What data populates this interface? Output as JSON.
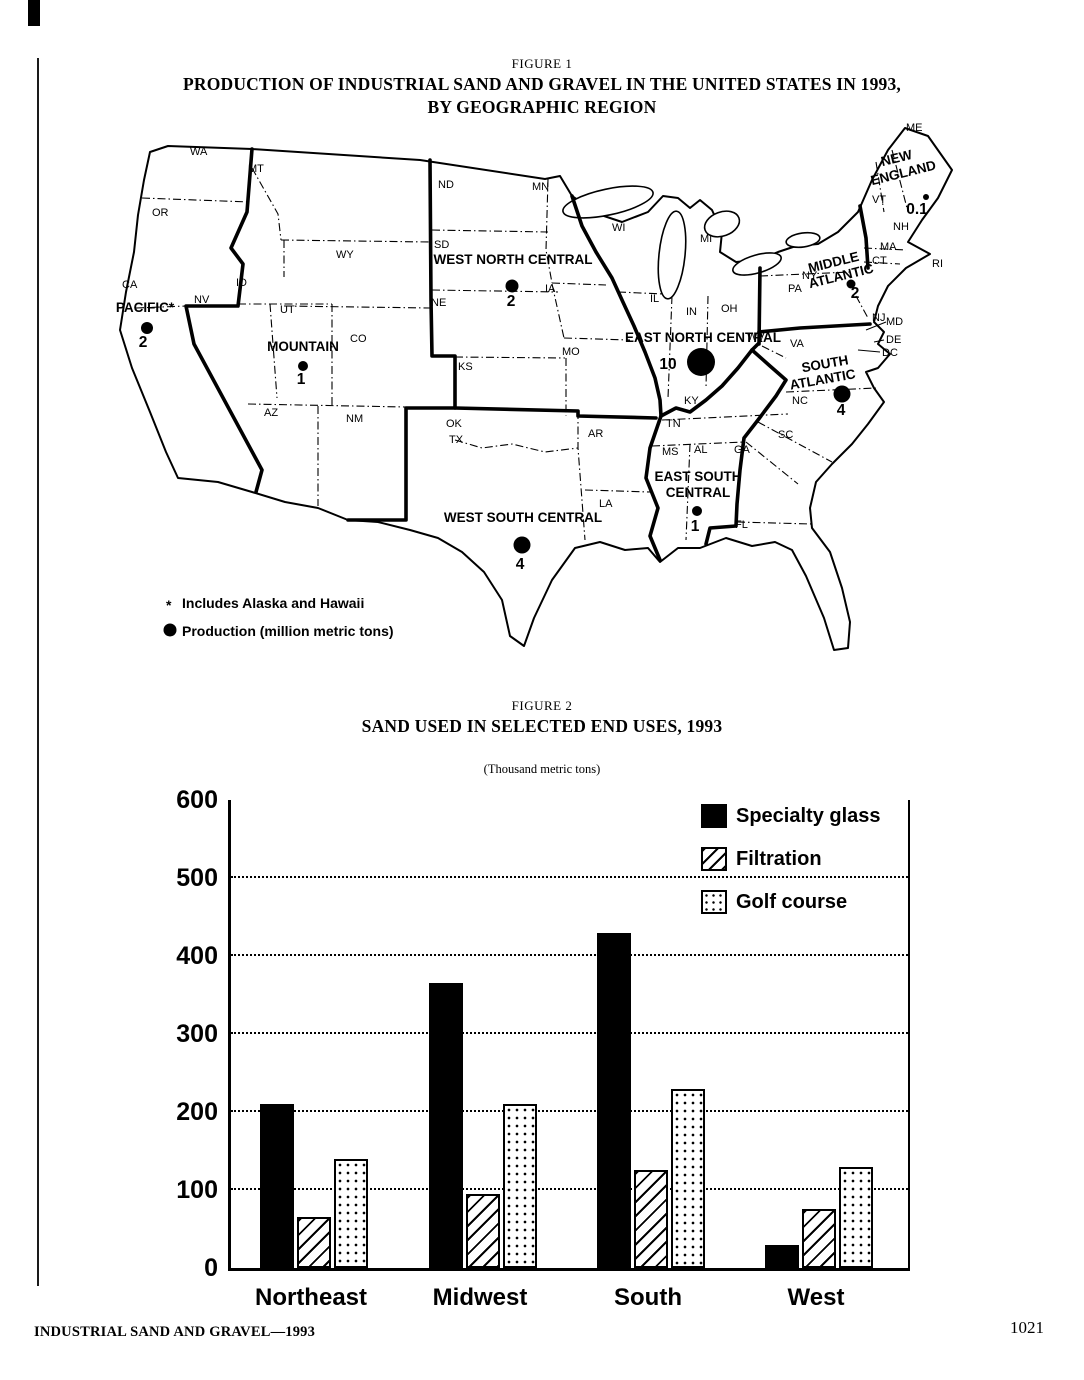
{
  "page": {
    "figure1": {
      "label": "FIGURE 1",
      "title_line1": "PRODUCTION OF INDUSTRIAL SAND AND GRAVEL IN THE UNITED STATES IN 1993,",
      "title_line2": "BY GEOGRAPHIC REGION"
    },
    "figure2": {
      "label": "FIGURE 2",
      "title": "SAND USED IN SELECTED END USES, 1993",
      "subtitle": "(Thousand metric tons)"
    },
    "footer": {
      "left": "INDUSTRIAL SAND AND GRAVEL—1993",
      "page_number": "1021"
    }
  },
  "map": {
    "states": {
      "wa": "WA",
      "or": "OR",
      "ca": "CA",
      "nv": "NV",
      "id": "ID",
      "mt": "MT",
      "wy": "WY",
      "ut": "UT",
      "co": "CO",
      "az": "AZ",
      "nm": "NM",
      "nd": "ND",
      "sd": "SD",
      "ne": "NE",
      "ks": "KS",
      "mn": "MN",
      "ia": "IA",
      "mo": "MO",
      "ok": "OK",
      "tx": "TX",
      "ar": "AR",
      "la": "LA",
      "wi": "WI",
      "mi": "MI",
      "il": "IL",
      "in": "IN",
      "oh": "OH",
      "ky": "KY",
      "tn": "TN",
      "ms": "MS",
      "al": "AL",
      "ga": "GA",
      "fl": "FL",
      "sc": "SC",
      "nc": "NC",
      "va": "VA",
      "wv": "WV",
      "pa": "PA",
      "ny": "NY",
      "nj": "NJ",
      "md": "MD",
      "de": "DE",
      "dc": "DC",
      "vt": "VT",
      "nh": "NH",
      "ma": "MA",
      "ct": "CT",
      "ri": "RI",
      "me": "ME"
    },
    "regions": {
      "pacific": {
        "line1": "PACIFIC*",
        "line2": "",
        "value": "2"
      },
      "mountain": {
        "line1": "MOUNTAIN",
        "line2": "",
        "value": "1"
      },
      "west_north_central": {
        "line1": "WEST NORTH CENTRAL",
        "line2": "",
        "value": "2"
      },
      "east_north_central": {
        "line1": "EAST NORTH CENTRAL",
        "line2": "",
        "value": "10"
      },
      "west_south_central": {
        "line1": "WEST SOUTH CENTRAL",
        "line2": "",
        "value": "4"
      },
      "east_south_central": {
        "line1": "EAST SOUTH",
        "line2": "CENTRAL",
        "value": "1"
      },
      "south_atlantic": {
        "line1": "SOUTH",
        "line2": "ATLANTIC",
        "value": "4"
      },
      "middle_atlantic": {
        "line1": "MIDDLE",
        "line2": "ATLANTIC",
        "value": "2"
      },
      "new_england": {
        "line1": "NEW",
        "line2": "ENGLAND",
        "value": "0.1"
      }
    },
    "legend": {
      "note_symbol": "*",
      "note": "Includes Alaska and Hawaii",
      "dot_label": "Production (million metric tons)"
    }
  },
  "chart_data": {
    "type": "bar",
    "title": "SAND USED IN SELECTED END USES, 1993",
    "units_label": "(Thousand metric tons)",
    "categories": [
      "Northeast",
      "Midwest",
      "South",
      "West"
    ],
    "series": [
      {
        "name": "Specialty glass",
        "pattern": "solid",
        "values": [
          210,
          365,
          430,
          30
        ]
      },
      {
        "name": "Filtration",
        "pattern": "diagonal-hatch",
        "values": [
          65,
          95,
          125,
          75
        ]
      },
      {
        "name": "Golf course",
        "pattern": "dots",
        "values": [
          140,
          210,
          230,
          130
        ]
      }
    ],
    "ylim": [
      0,
      600
    ],
    "yticks": [
      0,
      100,
      200,
      300,
      400,
      500,
      600
    ],
    "gridlines": "dotted-horizontal",
    "legend_position": "top-right"
  }
}
